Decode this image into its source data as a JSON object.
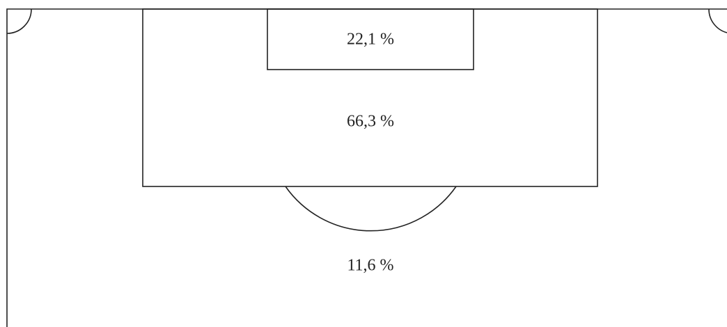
{
  "zones": [
    {
      "label": "22,1 %"
    },
    {
      "label": "66,3 %"
    },
    {
      "label": "11,6 %"
    }
  ]
}
